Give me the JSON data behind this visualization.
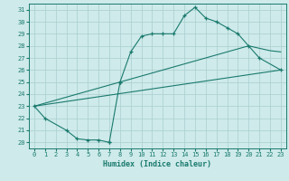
{
  "xlabel": "Humidex (Indice chaleur)",
  "bg_color": "#ceeaea",
  "grid_color": "#aacece",
  "line_color": "#1a7a6e",
  "xlim": [
    -0.5,
    23.5
  ],
  "ylim": [
    19.5,
    31.5
  ],
  "xticks": [
    0,
    1,
    2,
    3,
    4,
    5,
    6,
    7,
    8,
    9,
    10,
    11,
    12,
    13,
    14,
    15,
    16,
    17,
    18,
    19,
    20,
    21,
    22,
    23
  ],
  "yticks": [
    20,
    21,
    22,
    23,
    24,
    25,
    26,
    27,
    28,
    29,
    30,
    31
  ],
  "line1_segments": [
    {
      "x": [
        0,
        1,
        3,
        4,
        5,
        6,
        7
      ],
      "y": [
        23,
        22,
        21,
        20.3,
        20.2,
        20.2,
        20.0
      ]
    },
    {
      "x": [
        7,
        8
      ],
      "y": [
        20.0,
        25.0
      ]
    },
    {
      "x": [
        8,
        9,
        10,
        11,
        12,
        13,
        14,
        15,
        16,
        17,
        18,
        19,
        20,
        21,
        23
      ],
      "y": [
        25.0,
        27.5,
        28.8,
        29.0,
        29.0,
        29.0,
        30.5,
        31.2,
        30.3,
        30.0,
        29.5,
        29.0,
        28.0,
        27.0,
        26.0
      ]
    }
  ],
  "line2": {
    "x": [
      0,
      23
    ],
    "y": [
      23,
      26.0
    ]
  },
  "line3": {
    "x": [
      0,
      20,
      21,
      22,
      23
    ],
    "y": [
      23,
      28.0,
      27.8,
      27.6,
      27.5
    ]
  }
}
